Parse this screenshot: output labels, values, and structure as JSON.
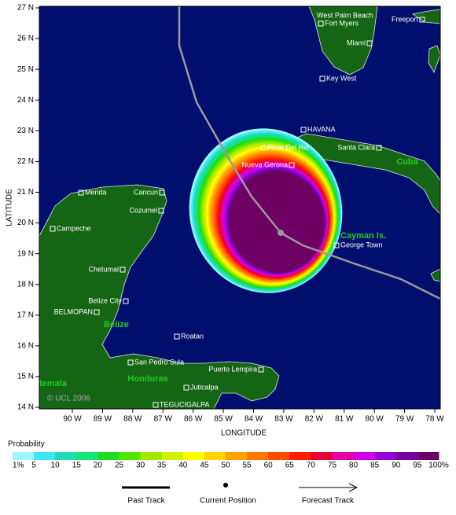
{
  "map": {
    "y_axis_label": "LATITUDE",
    "x_axis_label": "LONGITUDE",
    "lon_ticks": [
      {
        "value": 90,
        "label": "90 W"
      },
      {
        "value": 89,
        "label": "89 W"
      },
      {
        "value": 88,
        "label": "88 W"
      },
      {
        "value": 87,
        "label": "87 W"
      },
      {
        "value": 86,
        "label": "86 W"
      },
      {
        "value": 85,
        "label": "85 W"
      },
      {
        "value": 84,
        "label": "84 W"
      },
      {
        "value": 83,
        "label": "83 W"
      },
      {
        "value": 82,
        "label": "82 W"
      },
      {
        "value": 81,
        "label": "81 W"
      },
      {
        "value": 80,
        "label": "80 W"
      },
      {
        "value": 79,
        "label": "79 W"
      },
      {
        "value": 78,
        "label": "78 W"
      }
    ],
    "lat_ticks": [
      {
        "value": 27,
        "label": "27 N"
      },
      {
        "value": 26,
        "label": "26 N"
      },
      {
        "value": 25,
        "label": "25 N"
      },
      {
        "value": 24,
        "label": "24 N"
      },
      {
        "value": 23,
        "label": "23 N"
      },
      {
        "value": 22,
        "label": "22 N"
      },
      {
        "value": 21,
        "label": "21 N"
      },
      {
        "value": 20,
        "label": "20 N"
      },
      {
        "value": 19,
        "label": "19 N"
      },
      {
        "value": 18,
        "label": "18 N"
      },
      {
        "value": 17,
        "label": "17 N"
      },
      {
        "value": 16,
        "label": "16 N"
      },
      {
        "value": 15,
        "label": "15 N"
      },
      {
        "value": 14,
        "label": "14 N"
      }
    ],
    "places": [
      "West Palm Beach",
      "Fort Myers",
      "Freeport",
      "Miami",
      "Key West",
      "HAVANA",
      "Pinar Del Rio",
      "Santa Clara",
      "Nueva Gerona",
      "Merida",
      "Cancun",
      "Cozumel",
      "Campeche",
      "George Town",
      "Chetumal",
      "Belize City",
      "BELMOPAN",
      "Roatan",
      "San Pedro Sula",
      "Puerto Lempira",
      "Juticalpa",
      "TEGUCIGALPA"
    ],
    "regions": [
      "Cuba",
      "Cayman Is.",
      "Belize",
      "Honduras",
      "temala"
    ],
    "copyright": "© UCL 2006"
  },
  "legend": {
    "title": "Probability",
    "labels": [
      {
        "value": 1,
        "label": "1%"
      },
      5,
      10,
      15,
      20,
      25,
      30,
      35,
      40,
      45,
      50,
      55,
      60,
      65,
      70,
      75,
      80,
      85,
      90,
      95,
      {
        "value": 100,
        "label": "100%"
      }
    ],
    "colors": [
      "#9ff5fa",
      "#3ce8f0",
      "#1edcb4",
      "#14e678",
      "#1edc1e",
      "#50e600",
      "#a0ea00",
      "#d2f000",
      "#ffff00",
      "#ffd200",
      "#ffa000",
      "#ff7800",
      "#ff4b00",
      "#ff1e00",
      "#e6003c",
      "#e600a0",
      "#d200e6",
      "#9600dc",
      "#7800a0",
      "#6e0064"
    ]
  },
  "track_legend": [
    "Past Track",
    "Current Position",
    "Forecast Track"
  ]
}
